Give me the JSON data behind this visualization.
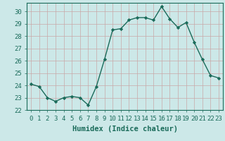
{
  "x": [
    0,
    1,
    2,
    3,
    4,
    5,
    6,
    7,
    8,
    9,
    10,
    11,
    12,
    13,
    14,
    15,
    16,
    17,
    18,
    19,
    20,
    21,
    22,
    23
  ],
  "y": [
    24.1,
    23.9,
    23.0,
    22.7,
    23.0,
    23.1,
    23.0,
    22.4,
    23.9,
    26.1,
    28.5,
    28.6,
    29.3,
    29.5,
    29.5,
    29.3,
    30.4,
    29.4,
    28.7,
    29.1,
    27.5,
    26.1,
    24.8,
    24.6
  ],
  "line_color": "#1a6b5a",
  "marker": "D",
  "marker_size": 2.2,
  "bg_color": "#cce8e8",
  "grid_color": "#c8a8a8",
  "xlabel": "Humidex (Indice chaleur)",
  "ylabel": "",
  "xlim": [
    -0.5,
    23.5
  ],
  "ylim": [
    22,
    30.7
  ],
  "yticks": [
    22,
    23,
    24,
    25,
    26,
    27,
    28,
    29,
    30
  ],
  "xticks": [
    0,
    1,
    2,
    3,
    4,
    5,
    6,
    7,
    8,
    9,
    10,
    11,
    12,
    13,
    14,
    15,
    16,
    17,
    18,
    19,
    20,
    21,
    22,
    23
  ],
  "xlabel_fontsize": 7.5,
  "tick_fontsize": 6.5,
  "line_width": 1.0
}
